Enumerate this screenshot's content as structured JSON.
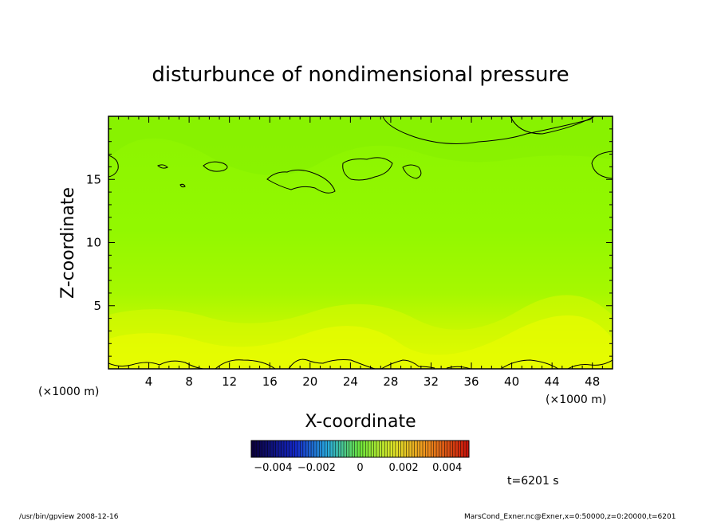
{
  "chart_data": {
    "type": "heatmap",
    "title": "disturbunce of nondimensional pressure",
    "xlabel": "X-coordinate",
    "ylabel": "Z-coordinate",
    "x_unit_left": "(×1000 m)",
    "x_unit_right": "(×1000 m)",
    "xlim": [
      0,
      50
    ],
    "ylim": [
      0,
      20
    ],
    "x_ticks": [
      4,
      8,
      12,
      16,
      20,
      24,
      28,
      32,
      36,
      40,
      44,
      48
    ],
    "x_tick_labels": [
      "4",
      "8",
      "12",
      "16",
      "20",
      "24",
      "28",
      "32",
      "36",
      "40",
      "44",
      "48"
    ],
    "y_ticks": [
      5,
      10,
      15
    ],
    "y_tick_labels": [
      "5",
      "10",
      "15"
    ],
    "colorbar": {
      "range": [
        -0.005,
        0.005
      ],
      "ticks": [
        -0.004,
        -0.002,
        0,
        0.002,
        0.004
      ],
      "tick_labels": [
        "−0.004",
        "−0.002",
        "0",
        "0.002",
        "0.004"
      ]
    },
    "field_description_values": {
      "top_value": 0.0001,
      "bottom_value": 0.0017
    },
    "contour_level": 0
  },
  "annotations": {
    "time": "t=6201 s",
    "footer_left": "/usr/bin/gpview  2008-12-16",
    "footer_right": "MarsCond_Exner.nc@Exner,x=0:50000,z=0:20000,t=6201"
  },
  "colors": {
    "yellow": "#f0ff00",
    "green": "#88ff00",
    "axis": "#000000"
  }
}
